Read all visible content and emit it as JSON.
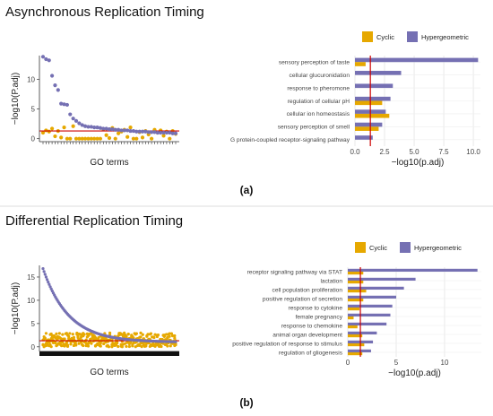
{
  "figure": {
    "panel_labels": [
      "(a)",
      "(b)"
    ],
    "colors": {
      "cyclic": "#e6a800",
      "hypergeometric": "#7570b3",
      "threshold": "#cc0000"
    }
  },
  "chart_data": [
    {
      "id": "a-scatter",
      "type": "scatter",
      "title": "Asynchronous Replication Timing",
      "xlabel": "GO terms",
      "ylabel": "−log10(P.adj)",
      "yticks": [
        "0",
        "5",
        "10"
      ],
      "ylim": [
        -0.5,
        14
      ],
      "threshold": 1.3,
      "n": 45,
      "series": [
        {
          "name": "Hypergeometric",
          "values": [
            13.8,
            13.4,
            13.2,
            10.6,
            9.0,
            8.2,
            5.9,
            5.8,
            5.7,
            4.1,
            3.4,
            3.0,
            2.6,
            2.3,
            2.1,
            2.0,
            2.0,
            1.9,
            1.9,
            1.8,
            1.7,
            1.7,
            1.6,
            1.6,
            1.5,
            1.5,
            1.4,
            1.4,
            1.4,
            1.3,
            1.3,
            1.2,
            1.2,
            1.2,
            1.2,
            1.1,
            1.1,
            1.1,
            1.0,
            1.0,
            1.0,
            1.0,
            1.0,
            0.9,
            0.9
          ]
        },
        {
          "name": "Cyclic",
          "values": [
            1.0,
            1.4,
            1.2,
            1.7,
            0.4,
            1.3,
            0.2,
            1.9,
            0.0,
            0.0,
            2.1,
            0.0,
            0.0,
            0.0,
            0.0,
            0.0,
            0.0,
            0.0,
            0.0,
            0.0,
            1.6,
            0.6,
            0.1,
            1.8,
            0.0,
            0.9,
            1.2,
            1.5,
            0.3,
            1.9,
            0.0,
            0.0,
            1.1,
            0.2,
            1.3,
            0.7,
            0.0,
            1.5,
            1.0,
            1.4,
            0.5,
            1.2,
            0.0,
            1.3,
            0.8
          ]
        }
      ]
    },
    {
      "id": "a-bar",
      "type": "bar",
      "xlabel": "−log10(p.adj)",
      "xticks": [
        "0.0",
        "2.5",
        "5.0",
        "7.5",
        "10.0"
      ],
      "xlim": [
        0,
        10.6
      ],
      "threshold": 1.3,
      "legend": [
        "Cyclic",
        "Hypergeometric"
      ],
      "categories": [
        "sensory perception of taste",
        "cellular glucuronidation",
        "response to pheromone",
        "regulation of cellular pH",
        "cellular ion homeostasis",
        "sensory perception of smell",
        "G protein-coupled receptor-signaling pathway"
      ],
      "series": [
        {
          "name": "Hypergeometric",
          "values": [
            10.4,
            3.9,
            3.2,
            3.0,
            2.6,
            2.3,
            1.5
          ]
        },
        {
          "name": "Cyclic",
          "values": [
            0.9,
            0,
            0,
            2.3,
            2.9,
            2.0,
            0
          ]
        }
      ]
    },
    {
      "id": "b-scatter",
      "type": "scatter",
      "title": "Differential Replication Timing",
      "xlabel": "GO terms",
      "ylabel": "−log10(P.adj)",
      "yticks": [
        "0",
        "5",
        "10",
        "15"
      ],
      "ylim": [
        -1,
        17.5
      ],
      "threshold": 1.3,
      "n": 130,
      "series": [
        {
          "name": "Hypergeometric",
          "decay": {
            "start": 16.8,
            "end": 1.0
          }
        },
        {
          "name": "Cyclic",
          "band": [
            0,
            3
          ]
        }
      ]
    },
    {
      "id": "b-bar",
      "type": "bar",
      "xlabel": "−log10(p.adj)",
      "xticks": [
        "0",
        "5",
        "10"
      ],
      "xlim": [
        0,
        13.8
      ],
      "threshold": 1.3,
      "legend": [
        "Cyclic",
        "Hypergeometric"
      ],
      "categories": [
        "receptor signaling pathway via STAT",
        "lactation",
        "cell population proliferation",
        "positive regulation of secretion",
        "response to cytokine",
        "female pregnancy",
        "response to chemokine",
        "animal organ development",
        "positive regulation of response to stimulus",
        "regulation of gliogenesis"
      ],
      "series": [
        {
          "name": "Hypergeometric",
          "values": [
            13.4,
            7.0,
            5.8,
            5.0,
            4.6,
            4.4,
            4.0,
            3.0,
            2.6,
            2.4
          ]
        },
        {
          "name": "Cyclic",
          "values": [
            1.6,
            1.6,
            1.9,
            1.6,
            1.2,
            0.6,
            1.0,
            1.5,
            1.7,
            1.5
          ]
        }
      ]
    }
  ]
}
